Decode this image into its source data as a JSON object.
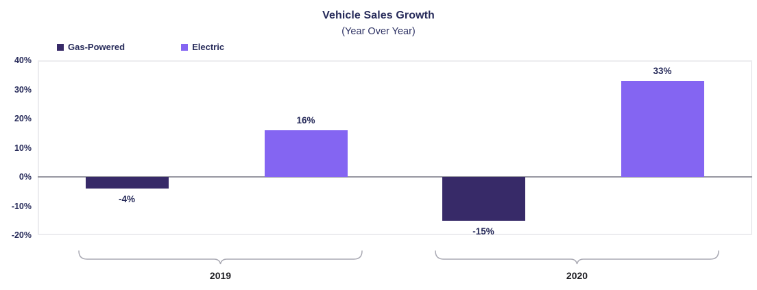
{
  "chart": {
    "title": "Vehicle Sales Growth",
    "subtitle": "(Year Over Year)"
  },
  "legend": {
    "position": "top-left",
    "items": [
      {
        "label": "Gas-Powered",
        "color": "#372a68"
      },
      {
        "label": "Electric",
        "color": "#8465f2"
      }
    ]
  },
  "colors": {
    "title_text": "#272b5a",
    "axis_text": "#272b5a",
    "value_label_text": "#272b5a",
    "category_text": "#1d1d22",
    "zero_line": "#9797a1",
    "plot_border": "#ececef",
    "bracket": "#a9a9b3",
    "background": "#ffffff"
  },
  "chart_data": {
    "type": "bar",
    "title": "Vehicle Sales Growth",
    "subtitle": "(Year Over Year)",
    "categories": [
      "2019",
      "2020"
    ],
    "series": [
      {
        "name": "Gas-Powered",
        "color": "#372a68",
        "values": [
          -4,
          -15
        ]
      },
      {
        "name": "Electric",
        "color": "#8465f2",
        "values": [
          16,
          33
        ]
      }
    ],
    "value_labels": {
      "Gas-Powered": [
        "-4%",
        "-15%"
      ],
      "Electric": [
        "16%",
        "33%"
      ]
    },
    "xlabel": "",
    "ylabel": "",
    "ylim": [
      -20,
      40
    ],
    "yticks": [
      40,
      30,
      20,
      10,
      0,
      -10,
      -20
    ],
    "ytick_format": "percent",
    "grid": false,
    "zero_baseline": true,
    "legend_position": "top-left"
  }
}
